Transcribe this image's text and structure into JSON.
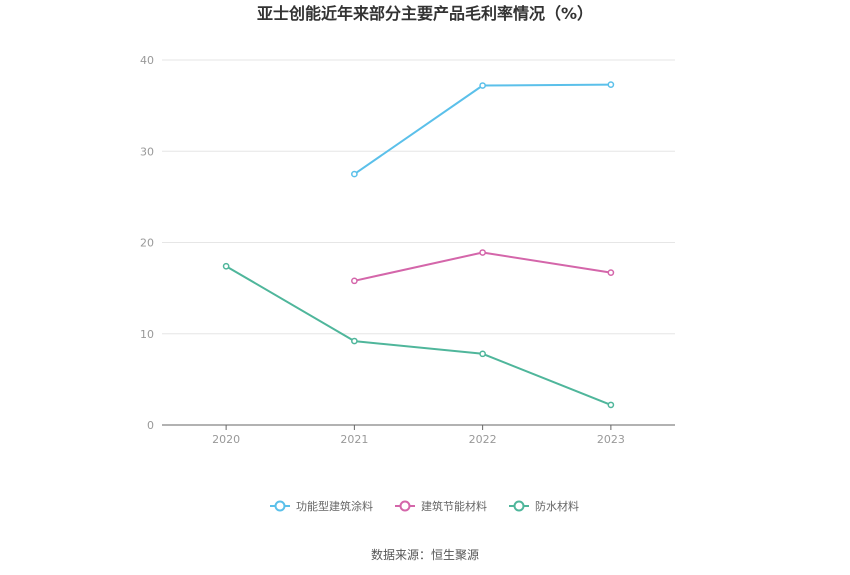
{
  "chart_data": {
    "type": "line",
    "title": "亚士创能近年来部分主要产品毛利率情况（%）",
    "xlabel": "",
    "ylabel": "",
    "categories": [
      "2020",
      "2021",
      "2022",
      "2023"
    ],
    "ylim": [
      0,
      40
    ],
    "yticks": [
      0,
      10,
      20,
      30,
      40
    ],
    "grid": true,
    "legend_position": "bottom",
    "series": [
      {
        "name": "功能型建筑涂料",
        "color": "#5bc0ea",
        "values": [
          null,
          27.5,
          37.2,
          37.3
        ]
      },
      {
        "name": "建筑节能材料",
        "color": "#d466aa",
        "values": [
          null,
          15.8,
          18.9,
          16.7
        ]
      },
      {
        "name": "防水材料",
        "color": "#4fb69b",
        "values": [
          17.4,
          9.2,
          7.8,
          2.2
        ]
      }
    ]
  },
  "footer": {
    "source": "数据来源：恒生聚源"
  }
}
